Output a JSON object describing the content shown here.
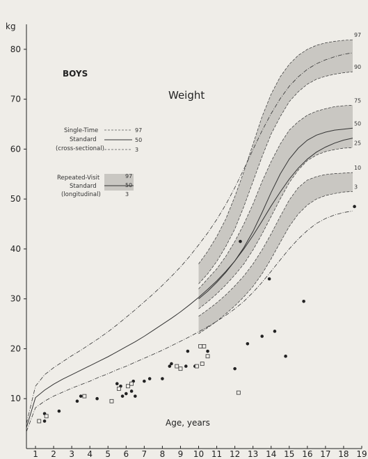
{
  "chart_data": {
    "type": "line",
    "title": "Weight",
    "subtitle": "BOYS",
    "ylabel": "kg",
    "xlabel": "Age, years",
    "xlim": [
      0.5,
      19
    ],
    "ylim": [
      0,
      85
    ],
    "x_ticks": [
      1,
      2,
      3,
      4,
      5,
      6,
      7,
      8,
      9,
      10,
      11,
      12,
      13,
      14,
      15,
      16,
      17,
      18,
      19
    ],
    "y_ticks": [
      10,
      20,
      30,
      40,
      50,
      60,
      70,
      80
    ],
    "cross_sectional": {
      "x": [
        0.5,
        1,
        1.5,
        2,
        2.5,
        3,
        3.5,
        4,
        4.5,
        5,
        5.5,
        6,
        6.5,
        7,
        7.5,
        8,
        8.5,
        9,
        9.5,
        10,
        10.5,
        11,
        11.5,
        12,
        12.5,
        13,
        13.5,
        14,
        14.5,
        15,
        15.5,
        16,
        16.5,
        17,
        17.5,
        18,
        18.5
      ],
      "series": [
        {
          "name": "97",
          "values": [
            5,
            12.5,
            14.8,
            16.2,
            17.4,
            18.6,
            19.7,
            20.9,
            22.1,
            23.4,
            24.8,
            26.3,
            27.8,
            29.4,
            31,
            32.7,
            34.5,
            36.4,
            38.5,
            40.8,
            43.2,
            45.9,
            48.9,
            52.3,
            56,
            59.9,
            63.7,
            67.1,
            70.1,
            72.6,
            74.5,
            76,
            77.1,
            77.9,
            78.5,
            79,
            79.3
          ]
        },
        {
          "name": "50",
          "values": [
            4.2,
            10.2,
            11.7,
            12.9,
            13.9,
            14.8,
            15.7,
            16.6,
            17.5,
            18.4,
            19.4,
            20.4,
            21.4,
            22.5,
            23.7,
            24.9,
            26.1,
            27.4,
            28.8,
            30.3,
            31.9,
            33.6,
            35.5,
            37.6,
            40,
            42.7,
            45.6,
            48.6,
            51.4,
            54,
            56.2,
            58,
            59.4,
            60.4,
            61.2,
            61.8,
            62.2
          ]
        },
        {
          "name": "3",
          "values": [
            3.4,
            8.2,
            9.5,
            10.5,
            11.3,
            12.1,
            12.8,
            13.5,
            14.3,
            15,
            15.8,
            16.5,
            17.3,
            18.1,
            18.9,
            19.7,
            20.6,
            21.5,
            22.4,
            23.4,
            24.4,
            25.5,
            26.7,
            28,
            29.5,
            31.3,
            33.3,
            35.5,
            37.8,
            40,
            42,
            43.7,
            45.1,
            46.1,
            46.8,
            47.3,
            47.6
          ]
        }
      ],
      "labels": [
        "Single-Time",
        "Standard",
        "(cross-sectional)"
      ]
    },
    "longitudinal": {
      "x": [
        10,
        10.5,
        11,
        11.5,
        12,
        12.5,
        13,
        13.5,
        14,
        14.5,
        15,
        15.5,
        16,
        16.5,
        17,
        17.5,
        18,
        18.5
      ],
      "series": [
        {
          "name": "97",
          "values": [
            37,
            39.5,
            42.5,
            46,
            50.5,
            55.5,
            61,
            66.5,
            71,
            74.5,
            77,
            78.8,
            80,
            80.8,
            81.3,
            81.6,
            81.8,
            81.9
          ]
        },
        {
          "name": "90",
          "values": [
            33,
            35,
            37.5,
            40.5,
            44,
            48.5,
            53.5,
            58.5,
            63,
            66.5,
            69.5,
            71.5,
            73,
            74,
            74.6,
            75,
            75.3,
            75.5
          ]
        },
        {
          "name": "75",
          "values": [
            32,
            34,
            36,
            38.5,
            41.5,
            45,
            49,
            53.5,
            57.5,
            61,
            63.8,
            65.5,
            66.8,
            67.6,
            68.1,
            68.5,
            68.7,
            68.8
          ]
        },
        {
          "name": "50",
          "values": [
            30,
            31.5,
            33.3,
            35.3,
            37.6,
            40.3,
            43.5,
            47.3,
            51.3,
            55,
            58,
            60.2,
            61.8,
            62.8,
            63.4,
            63.8,
            64,
            64.2
          ]
        },
        {
          "name": "25",
          "values": [
            28,
            29.4,
            31,
            32.8,
            34.8,
            37,
            39.8,
            43,
            46.5,
            50,
            53.3,
            55.8,
            57.7,
            58.8,
            59.5,
            59.9,
            60.2,
            60.3
          ]
        },
        {
          "name": "10",
          "values": [
            26.5,
            27.8,
            29.2,
            30.8,
            32.6,
            34.6,
            37,
            39.8,
            43,
            46.5,
            49.8,
            52.3,
            53.8,
            54.5,
            54.9,
            55.1,
            55.2,
            55.3
          ]
        },
        {
          "name": "3",
          "values": [
            23,
            24.2,
            25.5,
            27,
            28.6,
            30.4,
            32.5,
            35,
            38,
            41.3,
            44.5,
            47,
            48.8,
            50,
            50.7,
            51.1,
            51.4,
            51.5
          ]
        }
      ],
      "labels": [
        "Repeated-Visit",
        "Standard",
        "(longitudinal)"
      ]
    },
    "points_filled": [
      [
        1.5,
        7
      ],
      [
        1.5,
        5.5
      ],
      [
        2.3,
        7.5
      ],
      [
        3.3,
        9.5
      ],
      [
        3.5,
        10.5
      ],
      [
        4.4,
        10
      ],
      [
        5.5,
        13
      ],
      [
        5.7,
        12.5
      ],
      [
        5.8,
        10.5
      ],
      [
        6,
        11
      ],
      [
        6.3,
        11.5
      ],
      [
        6.4,
        13.5
      ],
      [
        6.5,
        10.5
      ],
      [
        7,
        13.5
      ],
      [
        7.3,
        14
      ],
      [
        8,
        14
      ],
      [
        8.4,
        16.5
      ],
      [
        8.5,
        17
      ],
      [
        9.3,
        16.5
      ],
      [
        9.4,
        19.5
      ],
      [
        9.8,
        16.5
      ],
      [
        10.5,
        19.5
      ],
      [
        12,
        16
      ],
      [
        12.3,
        41.5
      ],
      [
        12.7,
        21
      ],
      [
        13.5,
        22.5
      ],
      [
        13.9,
        34
      ],
      [
        14.2,
        23.5
      ],
      [
        14.8,
        18.5
      ],
      [
        15.8,
        29.5
      ],
      [
        18.6,
        48.5
      ]
    ],
    "points_open": [
      [
        1.2,
        5.5
      ],
      [
        1.6,
        6.5
      ],
      [
        3.7,
        10.5
      ],
      [
        5.2,
        9.5
      ],
      [
        5.6,
        12
      ],
      [
        6.1,
        12.5
      ],
      [
        6.3,
        13
      ],
      [
        8.8,
        16.5
      ],
      [
        9.0,
        16
      ],
      [
        9.9,
        16.5
      ],
      [
        10.1,
        20.5
      ],
      [
        10.3,
        20.5
      ],
      [
        10.5,
        18.5
      ],
      [
        10.2,
        17
      ],
      [
        12.2,
        11.2
      ]
    ],
    "percentile_labels": [
      "97",
      "90",
      "75",
      "50",
      "25",
      "10",
      "3"
    ]
  }
}
